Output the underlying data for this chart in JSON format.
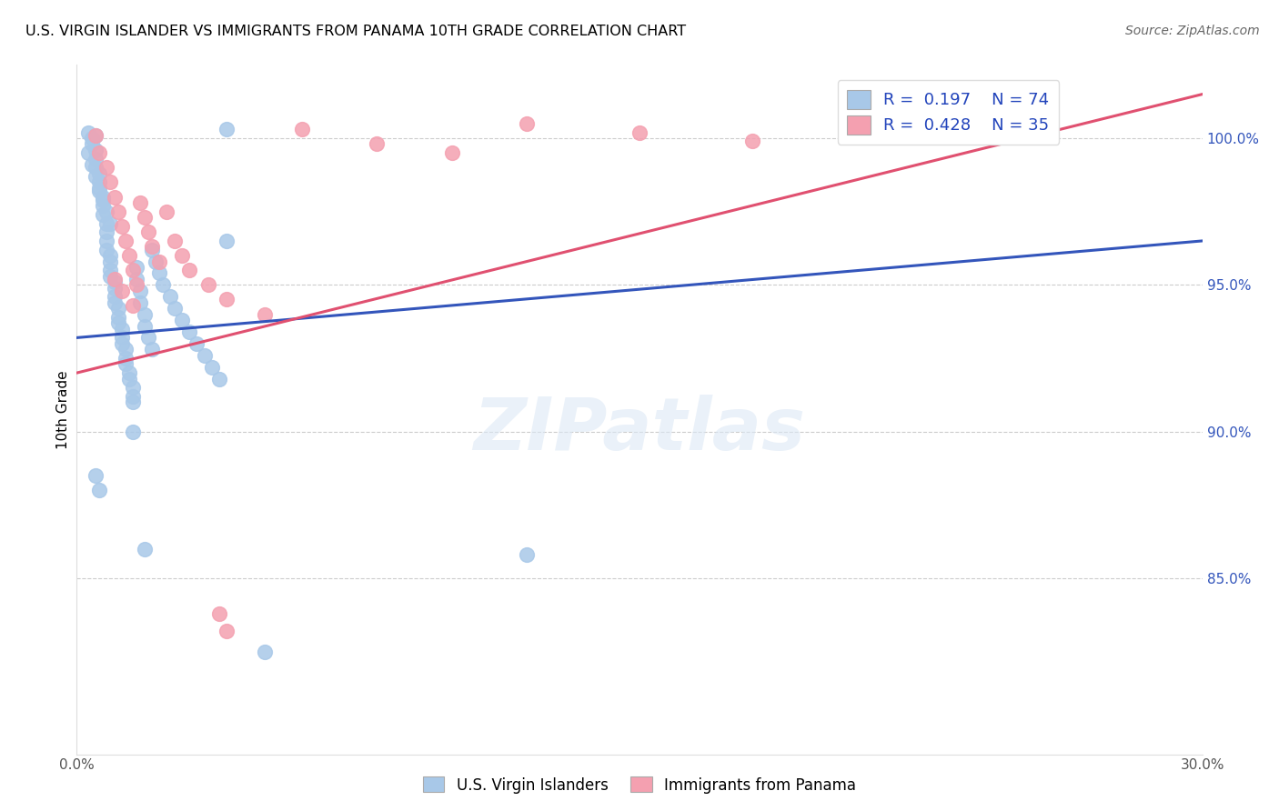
{
  "title": "U.S. VIRGIN ISLANDER VS IMMIGRANTS FROM PANAMA 10TH GRADE CORRELATION CHART",
  "source": "Source: ZipAtlas.com",
  "ylabel": "10th Grade",
  "x_min": 0.0,
  "x_max": 0.3,
  "y_min": 79.0,
  "y_max": 102.5,
  "color_blue": "#a8c8e8",
  "color_pink": "#f4a0b0",
  "line_color_blue": "#3355bb",
  "line_color_pink": "#e05070",
  "scatter_blue_x": [
    0.003,
    0.004,
    0.004,
    0.005,
    0.005,
    0.005,
    0.005,
    0.006,
    0.006,
    0.006,
    0.007,
    0.007,
    0.007,
    0.008,
    0.008,
    0.008,
    0.008,
    0.009,
    0.009,
    0.009,
    0.009,
    0.01,
    0.01,
    0.01,
    0.01,
    0.011,
    0.011,
    0.011,
    0.012,
    0.012,
    0.012,
    0.013,
    0.013,
    0.013,
    0.014,
    0.014,
    0.015,
    0.015,
    0.015,
    0.016,
    0.016,
    0.017,
    0.017,
    0.018,
    0.018,
    0.019,
    0.02,
    0.02,
    0.021,
    0.022,
    0.023,
    0.025,
    0.026,
    0.028,
    0.03,
    0.032,
    0.034,
    0.036,
    0.038,
    0.04,
    0.003,
    0.004,
    0.005,
    0.006,
    0.007,
    0.008,
    0.009,
    0.015,
    0.018,
    0.04,
    0.005,
    0.006,
    0.12,
    0.05
  ],
  "scatter_blue_y": [
    100.2,
    100.0,
    99.8,
    100.1,
    99.6,
    99.3,
    99.0,
    98.8,
    98.5,
    98.2,
    98.0,
    97.7,
    97.4,
    97.1,
    96.8,
    96.5,
    96.2,
    96.0,
    95.8,
    95.5,
    95.3,
    95.1,
    94.9,
    94.6,
    94.4,
    94.2,
    93.9,
    93.7,
    93.5,
    93.2,
    93.0,
    92.8,
    92.5,
    92.3,
    92.0,
    91.8,
    91.5,
    91.2,
    91.0,
    95.6,
    95.2,
    94.8,
    94.4,
    94.0,
    93.6,
    93.2,
    92.8,
    96.2,
    95.8,
    95.4,
    95.0,
    94.6,
    94.2,
    93.8,
    93.4,
    93.0,
    92.6,
    92.2,
    91.8,
    96.5,
    99.5,
    99.1,
    98.7,
    98.3,
    97.9,
    97.5,
    97.1,
    90.0,
    86.0,
    100.3,
    88.5,
    88.0,
    85.8,
    82.5
  ],
  "scatter_pink_x": [
    0.005,
    0.006,
    0.008,
    0.009,
    0.01,
    0.011,
    0.012,
    0.013,
    0.014,
    0.015,
    0.016,
    0.017,
    0.018,
    0.019,
    0.02,
    0.022,
    0.024,
    0.026,
    0.028,
    0.03,
    0.035,
    0.04,
    0.05,
    0.06,
    0.08,
    0.1,
    0.12,
    0.15,
    0.18,
    0.25,
    0.01,
    0.012,
    0.015,
    0.038,
    0.04
  ],
  "scatter_pink_y": [
    100.1,
    99.5,
    99.0,
    98.5,
    98.0,
    97.5,
    97.0,
    96.5,
    96.0,
    95.5,
    95.0,
    97.8,
    97.3,
    96.8,
    96.3,
    95.8,
    97.5,
    96.5,
    96.0,
    95.5,
    95.0,
    94.5,
    94.0,
    100.3,
    99.8,
    99.5,
    100.5,
    100.2,
    99.9,
    100.8,
    95.2,
    94.8,
    94.3,
    83.8,
    83.2
  ],
  "blue_line_x0": 0.0,
  "blue_line_x1": 0.3,
  "blue_line_y0": 93.2,
  "blue_line_y1": 96.5,
  "pink_line_x0": 0.0,
  "pink_line_x1": 0.3,
  "pink_line_y0": 92.0,
  "pink_line_y1": 101.5
}
